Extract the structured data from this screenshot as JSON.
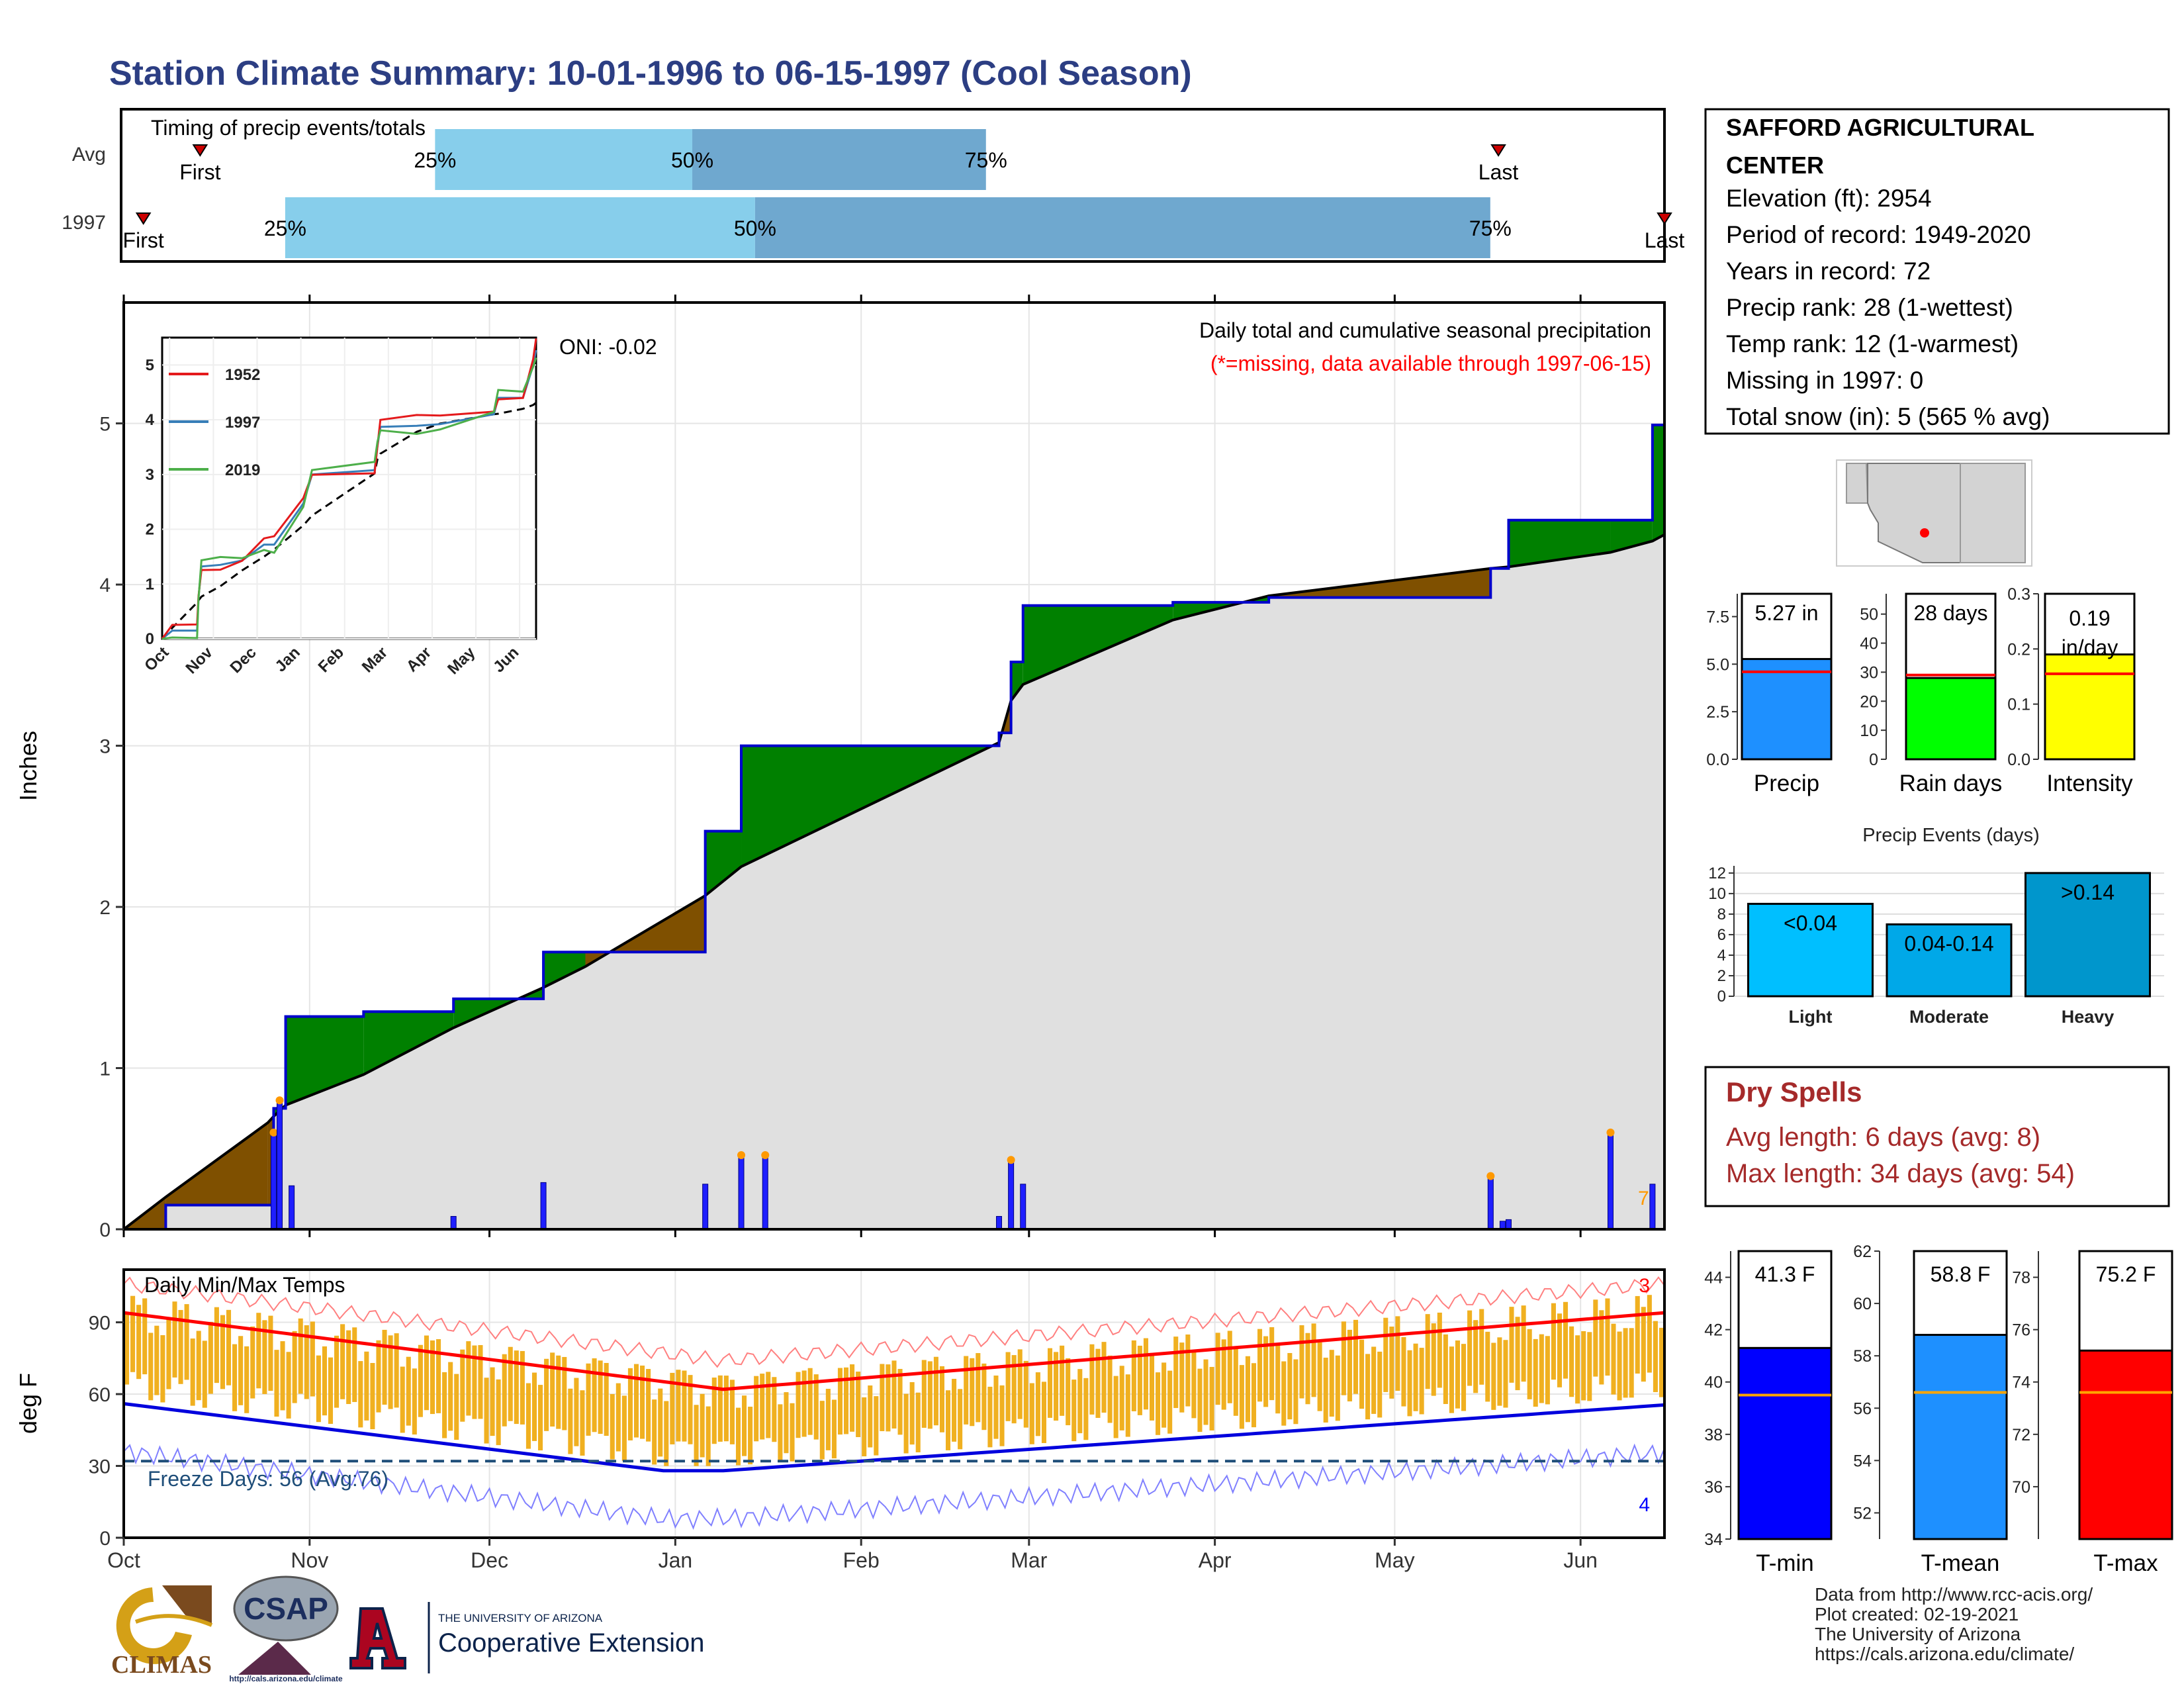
{
  "title": "Station Climate Summary: 10-01-1996 to 06-15-1997 (Cool Season)",
  "station": {
    "name_line1": "SAFFORD AGRICULTURAL",
    "name_line2": "CENTER",
    "lines": [
      "Elevation (ft): 2954",
      "Period of record: 1949-2020",
      "Years in record: 72",
      "Precip rank: 28 (1-wettest)",
      "Temp rank: 12 (1-warmest)",
      "Missing in 1997: 0",
      "Total snow (in): 5 (565 % avg)"
    ]
  },
  "timing": {
    "title": "Timing of precip events/totals",
    "rows": [
      {
        "label": "Avg",
        "first_day": 39,
        "q25_day": 155,
        "q50_day": 282,
        "q75_day": 427,
        "last_day": 680,
        "first_label": "First",
        "q25_label": "25%",
        "q50_label": "50%",
        "q75_label": "75%",
        "last_label": "Last"
      },
      {
        "label": "1997",
        "first_day": 11,
        "q25_day": 81,
        "q50_day": 313,
        "q75_day": 676,
        "last_day": 762,
        "first_label": "First",
        "q25_label": "25%",
        "q50_label": "50%",
        "q75_label": "75%",
        "last_label": "Last"
      }
    ],
    "xlim": [
      0,
      762
    ]
  },
  "precip": {
    "ylabel": "Inches",
    "header": "Daily total and cumulative seasonal precipitation",
    "note": "(*=missing, data available through 1997-06-15)",
    "oni": "ONI: -0.02",
    "yticks": [
      "0",
      "1",
      "2",
      "3",
      "4",
      "5"
    ],
    "corner_mark": "7",
    "colors": {
      "above": "#008000",
      "below": "#7f5000",
      "area": "#e0e0e0",
      "bars": "#1f1fff",
      "line": "#0000cc"
    }
  },
  "inset": {
    "yticks": [
      "0",
      "1",
      "2",
      "3",
      "4",
      "5"
    ],
    "months": [
      "Oct",
      "Nov",
      "Dec",
      "Jan",
      "Feb",
      "Mar",
      "Apr",
      "May",
      "Jun"
    ],
    "legend": [
      {
        "label": "1952",
        "color": "#e41a1c"
      },
      {
        "label": "1997",
        "color": "#377eb8"
      },
      {
        "label": "2019",
        "color": "#4daf4a"
      }
    ]
  },
  "temps": {
    "ylabel": "deg F",
    "header": "Daily Min/Max Temps",
    "freeze": "Freeze Days: 56 (Avg:76)",
    "record_high_count": "3",
    "record_low_count": "4",
    "yticks": [
      "0",
      "30",
      "60",
      "90"
    ],
    "months": [
      "Oct",
      "Nov",
      "Dec",
      "Jan",
      "Feb",
      "Mar",
      "Apr",
      "May",
      "Jun"
    ]
  },
  "chart_data": {
    "type": "area",
    "x": [
      "1996-10-01",
      "1996-10-08",
      "1996-10-25",
      "1996-10-26",
      "1996-10-28",
      "1996-11-10",
      "1996-11-25",
      "1996-12-10",
      "1996-12-17",
      "1997-01-06",
      "1997-01-12",
      "1997-02-24",
      "1997-02-26",
      "1997-02-28",
      "1997-03-25",
      "1997-04-10",
      "1997-05-17",
      "1997-05-20",
      "1997-06-06",
      "1997-06-13",
      "1997-06-15"
    ],
    "series": [
      {
        "name": "1997",
        "values": [
          0.0,
          0.15,
          0.15,
          0.75,
          1.32,
          1.35,
          1.43,
          1.72,
          1.72,
          2.47,
          3.0,
          3.08,
          3.52,
          3.87,
          3.89,
          3.92,
          4.1,
          4.4,
          4.4,
          4.99,
          5.27
        ]
      },
      {
        "name": "Avg",
        "values": [
          0.0,
          0.2,
          0.66,
          0.7,
          0.77,
          0.96,
          1.25,
          1.5,
          1.63,
          2.07,
          2.25,
          3.02,
          3.28,
          3.38,
          3.78,
          3.93,
          4.1,
          4.11,
          4.2,
          4.27,
          4.31
        ]
      }
    ],
    "daily_precip": [
      {
        "date": "1996-10-26",
        "value": 0.6
      },
      {
        "date": "1996-10-27",
        "value": 0.8
      },
      {
        "date": "1996-10-29",
        "value": 0.27
      },
      {
        "date": "1996-11-25",
        "value": 0.08
      },
      {
        "date": "1996-12-10",
        "value": 0.29
      },
      {
        "date": "1997-01-06",
        "value": 0.28
      },
      {
        "date": "1997-01-12",
        "value": 0.46
      },
      {
        "date": "1997-01-16",
        "value": 0.46
      },
      {
        "date": "1997-02-24",
        "value": 0.08
      },
      {
        "date": "1997-02-26",
        "value": 0.43
      },
      {
        "date": "1997-02-28",
        "value": 0.28
      },
      {
        "date": "1997-05-17",
        "value": 0.33
      },
      {
        "date": "1997-05-19",
        "value": 0.05
      },
      {
        "date": "1997-05-20",
        "value": 0.06
      },
      {
        "date": "1997-06-06",
        "value": 0.6
      },
      {
        "date": "1997-06-13",
        "value": 0.28
      }
    ],
    "xlabel": "",
    "ylabel": "Inches",
    "ylim": [
      0,
      5.75
    ],
    "summary_bars": {
      "precip": {
        "value": 5.27,
        "avg": 4.6,
        "label": "5.27 in",
        "name": "Precip",
        "yticks": [
          "0.0",
          "2.5",
          "5.0",
          "7.5"
        ],
        "ylim": [
          0,
          8.7
        ],
        "color": "#1e90ff"
      },
      "rain_days": {
        "value": 28,
        "avg": 29,
        "label": "28 days",
        "name": "Rain days",
        "yticks": [
          "0",
          "10",
          "20",
          "30",
          "40",
          "50"
        ],
        "ylim": [
          0,
          57
        ],
        "color": "#00ff00"
      },
      "intensity": {
        "value": 0.19,
        "avg": 0.155,
        "label_line1": "0.19",
        "label_line2": "in/day",
        "name": "Intensity",
        "yticks": [
          "0.0",
          "0.1",
          "0.2",
          "0.3"
        ],
        "ylim": [
          0,
          0.3
        ],
        "color": "#ffff00"
      }
    },
    "events": {
      "title": "Precip Events (days)",
      "categories": [
        "Light",
        "Moderate",
        "Heavy"
      ],
      "values": [
        9,
        7,
        12
      ],
      "labels": [
        "<0.04",
        "0.04-0.14",
        ">0.14"
      ],
      "yticks": [
        "0",
        "2",
        "4",
        "6",
        "8",
        "10",
        "12"
      ],
      "ylim": [
        0,
        12.7
      ],
      "colors": [
        "#00bfff",
        "#00a8e8",
        "#0096cc"
      ]
    },
    "dry_spells": {
      "title": "Dry Spells",
      "avg_length": "Avg length: 6 days (avg: 8)",
      "max_length": "Max length: 34 days (avg: 54)"
    },
    "temp_bars": [
      {
        "name": "T-min",
        "value": 41.3,
        "avg": 39.5,
        "label": "41.3 F",
        "color": "#0000ff",
        "yticks": [
          "34",
          "36",
          "38",
          "40",
          "42",
          "44"
        ],
        "ylim": [
          34,
          45
        ]
      },
      {
        "name": "T-mean",
        "value": 58.8,
        "avg": 56.6,
        "label": "58.8 F",
        "color": "#1e90ff",
        "yticks": [
          "52",
          "54",
          "56",
          "58",
          "60",
          "62"
        ],
        "ylim": [
          51,
          62
        ]
      },
      {
        "name": "T-max",
        "value": 75.2,
        "avg": 73.6,
        "label": "75.2 F",
        "color": "#ff0000",
        "yticks": [
          "70",
          "72",
          "74",
          "76",
          "78"
        ],
        "ylim": [
          68,
          79
        ]
      }
    ]
  },
  "footer": {
    "lines": [
      "Data from http://www.rcc-acis.org/",
      "Plot created: 02-19-2021",
      "The University of Arizona",
      "https://cals.arizona.edu/climate/"
    ],
    "logos": {
      "climas": "CLIMAS",
      "csap": "CSAP",
      "csap_url": "http://cals.arizona.edu/climate",
      "ua_small": "THE UNIVERSITY OF ARIZONA",
      "ua_big": "Cooperative Extension"
    }
  }
}
